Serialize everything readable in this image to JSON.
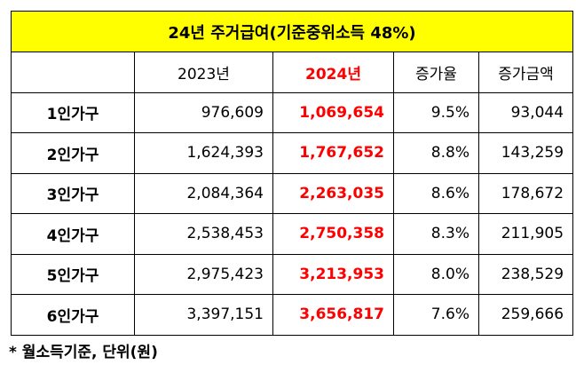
{
  "title": "24년 주거급여(기준중위소득 48%)",
  "headers": [
    "",
    "2023년",
    "2024년",
    "증가율",
    "증가금액"
  ],
  "colors": {
    "title_bg": "#ffff00",
    "highlight": "#ff0000"
  },
  "rows": [
    {
      "label": "1인가구",
      "y2023": "976,609",
      "y2024": "1,069,654",
      "rate": "9.5%",
      "increase": "93,044"
    },
    {
      "label": "2인가구",
      "y2023": "1,624,393",
      "y2024": "1,767,652",
      "rate": "8.8%",
      "increase": "143,259"
    },
    {
      "label": "3인가구",
      "y2023": "2,084,364",
      "y2024": "2,263,035",
      "rate": "8.6%",
      "increase": "178,672"
    },
    {
      "label": "4인가구",
      "y2023": "2,538,453",
      "y2024": "2,750,358",
      "rate": "8.3%",
      "increase": "211,905"
    },
    {
      "label": "5인가구",
      "y2023": "2,975,423",
      "y2024": "3,213,953",
      "rate": "8.0%",
      "increase": "238,529"
    },
    {
      "label": "6인가구",
      "y2023": "3,397,151",
      "y2024": "3,656,817",
      "rate": "7.6%",
      "increase": "259,666"
    }
  ],
  "note": "* 월소득기준, 단위(원)"
}
